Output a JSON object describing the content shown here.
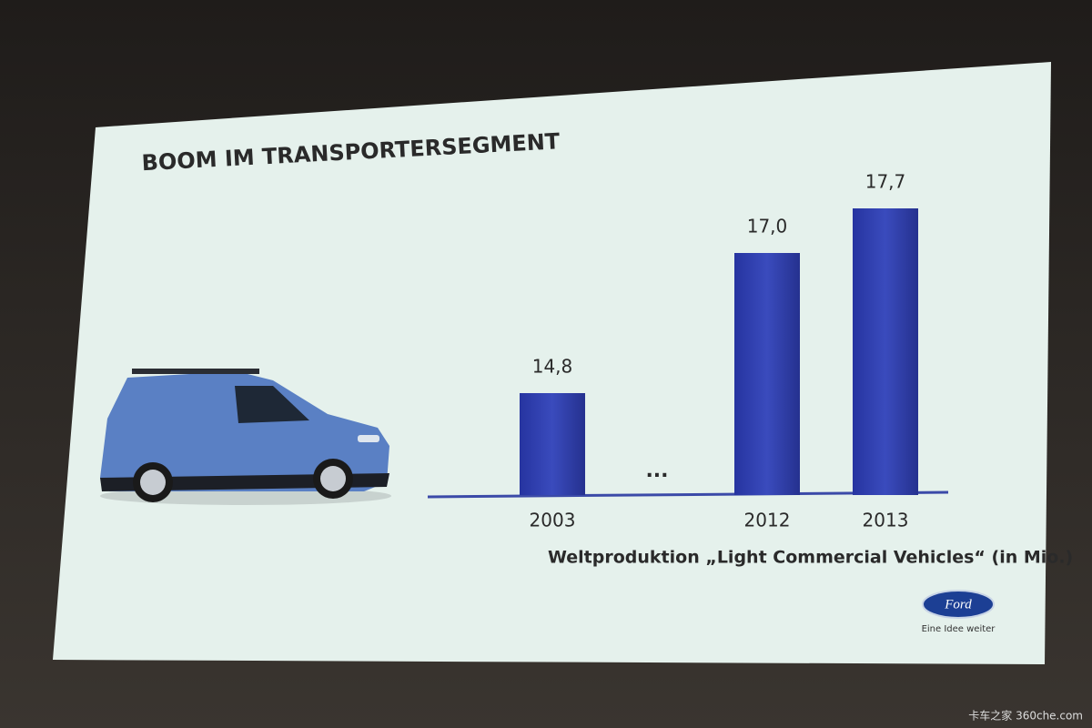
{
  "chart_data": {
    "type": "bar",
    "title": "BOOM IM TRANSPORTERSEGMENT",
    "caption": "Weltproduktion „Light Commercial Vehicles“ (in Mio.)",
    "categories": [
      "2003",
      "...",
      "2012",
      "2013"
    ],
    "values": [
      14.8,
      null,
      17.0,
      17.7
    ],
    "value_labels": [
      "14,8",
      null,
      "17,0",
      "17,7"
    ],
    "color": "#2f3ea3",
    "ylim": [
      13.2,
      18
    ]
  },
  "logo": {
    "brand": "Ford",
    "slogan": "Eine Idee weiter"
  },
  "watermark": "卡车之家 360che.com"
}
